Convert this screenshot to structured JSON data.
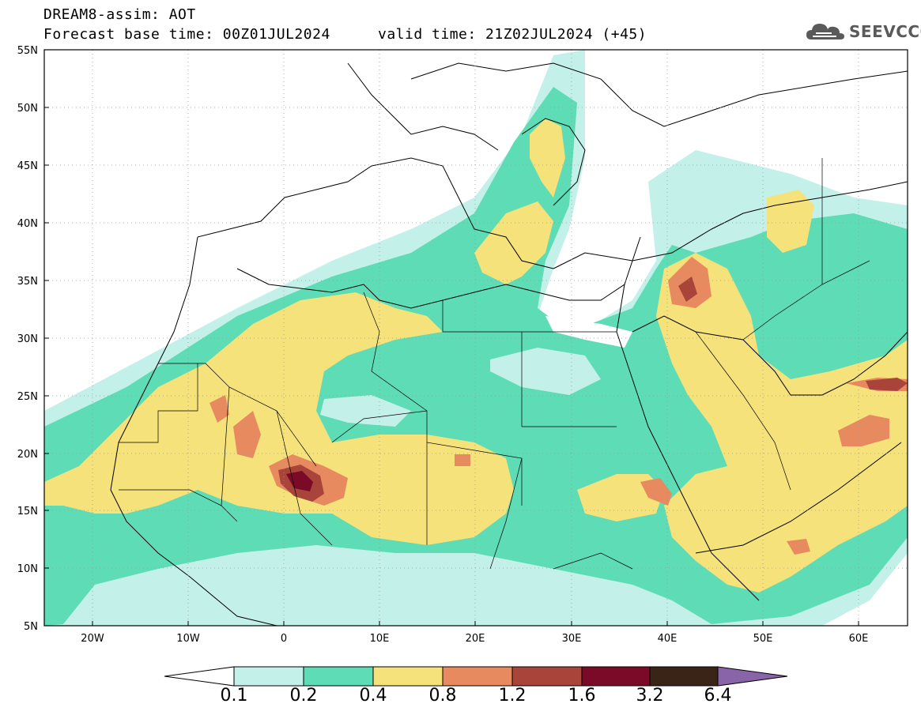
{
  "header": {
    "title_line1": "DREAM8-assim: AOT",
    "title_line2": "Forecast base time: 00Z01JUL2024",
    "valid_time": "valid time: 21Z02JUL2024 (+45)"
  },
  "logo": {
    "text": "SEEVCCC",
    "icon": "cloud-icon"
  },
  "map": {
    "lon_range": [
      -25,
      65
    ],
    "lat_range": [
      5,
      55
    ],
    "lon_ticks": [
      "20W",
      "10W",
      "0",
      "10E",
      "20E",
      "30E",
      "40E",
      "50E",
      "60E"
    ],
    "lat_ticks": [
      "55N",
      "50N",
      "45N",
      "40N",
      "35N",
      "30N",
      "25N",
      "20N",
      "15N",
      "10N",
      "5N"
    ]
  },
  "colorbar": {
    "labels": [
      "0.1",
      "0.2",
      "0.4",
      "0.8",
      "1.2",
      "1.6",
      "3.2",
      "6.4"
    ],
    "colors": [
      "#c4f0ea",
      "#5ddcb5",
      "#f6e27a",
      "#e88a60",
      "#a8443a",
      "#7a0a28",
      "#3a2418",
      "#8a64a8"
    ]
  },
  "colors": {
    "level_01": "#c4f0ea",
    "level_02": "#5ddcb5",
    "level_04": "#f6e27a",
    "level_08": "#e88a60",
    "level_12": "#a8443a",
    "level_16": "#7a0a28"
  }
}
